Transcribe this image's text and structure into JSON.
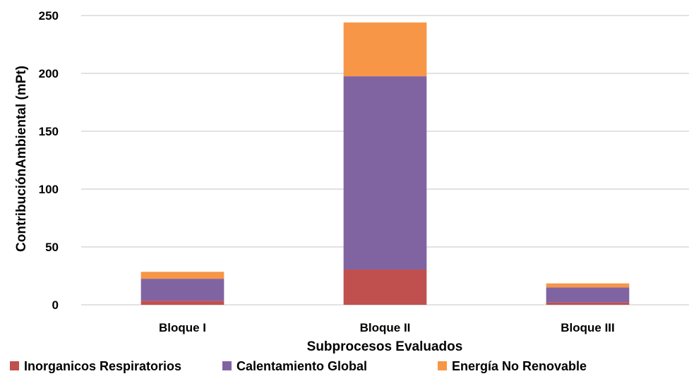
{
  "chart_data": {
    "type": "bar",
    "stacked": true,
    "categories": [
      "Bloque I",
      "Bloque II",
      "Bloque III"
    ],
    "series": [
      {
        "name": "Inorganicos Respiratorios",
        "color": "#c0504d",
        "values": [
          3.5,
          30.5,
          2
        ]
      },
      {
        "name": "Calentamiento Global",
        "color": "#8064a2",
        "values": [
          19,
          167,
          13
        ]
      },
      {
        "name": "Energía No Renovable",
        "color": "#f79646",
        "values": [
          6,
          46.5,
          3.5
        ]
      }
    ],
    "xlabel": "Subprocesos Evaluados",
    "ylabel": "ContribuciónAmbiental (mPt)",
    "ylim": [
      0,
      250
    ],
    "yticks": [
      0,
      50,
      100,
      150,
      200,
      250
    ],
    "grid": true,
    "legend_position": "bottom",
    "gridline_color": "#d9d9d9"
  }
}
